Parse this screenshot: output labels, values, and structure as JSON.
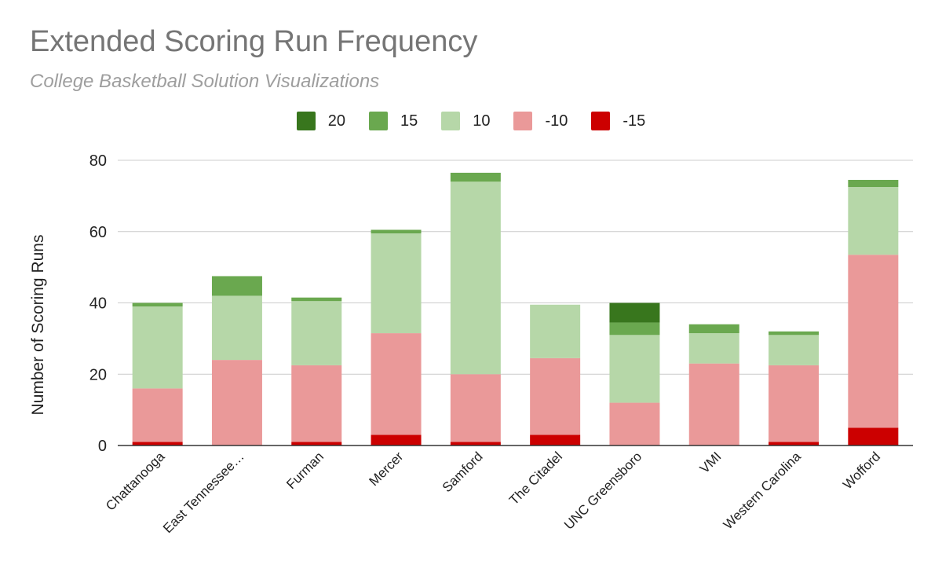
{
  "chart_data": {
    "type": "bar",
    "stacked": true,
    "title": "Extended Scoring Run Frequency",
    "subtitle": "College Basketball Solution Visualizations",
    "xlabel": "",
    "ylabel": "Number of Scoring Runs",
    "ylim": [
      0,
      80
    ],
    "yticks": [
      0,
      20,
      40,
      60,
      80
    ],
    "grid": true,
    "legend_position": "top-center",
    "categories": [
      "Chattanooga",
      "East Tennessee…",
      "Furman",
      "Mercer",
      "Samford",
      "The Citadel",
      "UNC Greensboro",
      "VMI",
      "Western Carolina",
      "Wofford"
    ],
    "stack_order": [
      "-15",
      "-10",
      "10",
      "15",
      "20"
    ],
    "series": [
      {
        "name": "20",
        "color": "#38761d",
        "values": [
          0,
          0,
          0,
          0,
          0,
          0,
          5.5,
          0,
          0,
          0
        ]
      },
      {
        "name": "15",
        "color": "#6aa84f",
        "values": [
          1,
          5.5,
          1,
          1,
          2.5,
          0,
          3.5,
          2.5,
          1,
          2
        ]
      },
      {
        "name": "10",
        "color": "#b6d7a8",
        "values": [
          23,
          18,
          18,
          28,
          54,
          15,
          19,
          8.5,
          8.5,
          19
        ]
      },
      {
        "name": "-10",
        "color": "#ea9999",
        "values": [
          15,
          24,
          21.5,
          28.5,
          19,
          21.5,
          12,
          23,
          21.5,
          48.5
        ]
      },
      {
        "name": "-15",
        "color": "#cc0000",
        "values": [
          1,
          0,
          1,
          3,
          1,
          3,
          0,
          0,
          1,
          5
        ]
      }
    ]
  }
}
